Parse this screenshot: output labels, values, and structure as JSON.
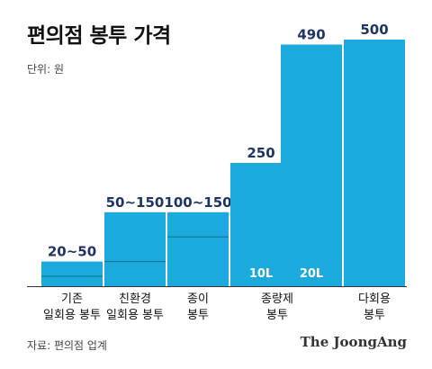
{
  "header": {
    "title": "편의점 봉투 가격",
    "unit": "단위: 원"
  },
  "footer": {
    "source": "자료: 편의점 업계",
    "brand": "The JoongAng"
  },
  "colors": {
    "bar": "#1baadb",
    "divider": "#0e6f95",
    "value_label": "#1f3560",
    "inner_label": "#ffffff"
  },
  "chart_data": {
    "type": "bar",
    "title": "편의점 봉투 가격",
    "unit": "단위: 원",
    "ylim": [
      0,
      520
    ],
    "grid": false,
    "bars": [
      {
        "group": 0,
        "category": [
          "기존",
          "일회용 봉투"
        ],
        "low": 20,
        "value": 50,
        "value_label": "20~50",
        "inner_label": ""
      },
      {
        "group": 1,
        "category": [
          "친환경",
          "일회용 봉투"
        ],
        "low": 50,
        "value": 150,
        "value_label": "50~150",
        "inner_label": ""
      },
      {
        "group": 2,
        "category": [
          "종이",
          "봉투"
        ],
        "low": 100,
        "value": 150,
        "value_label": "100~150",
        "inner_label": ""
      },
      {
        "group": 3,
        "category": [
          "종량제",
          "봉투"
        ],
        "low": null,
        "value": 250,
        "value_label": "250",
        "inner_label": "10L"
      },
      {
        "group": 3,
        "category": [
          "종량제",
          "봉투"
        ],
        "low": null,
        "value": 490,
        "value_label": "490",
        "inner_label": "20L"
      },
      {
        "group": 4,
        "category": [
          "다회용",
          "봉투"
        ],
        "low": null,
        "value": 500,
        "value_label": "500",
        "inner_label": ""
      }
    ],
    "categories": [
      [
        "기존",
        "일회용 봉투"
      ],
      [
        "친환경",
        "일회용 봉투"
      ],
      [
        "종이",
        "봉투"
      ],
      [
        "종량제",
        "봉투"
      ],
      [
        "다회용",
        "봉투"
      ]
    ]
  }
}
